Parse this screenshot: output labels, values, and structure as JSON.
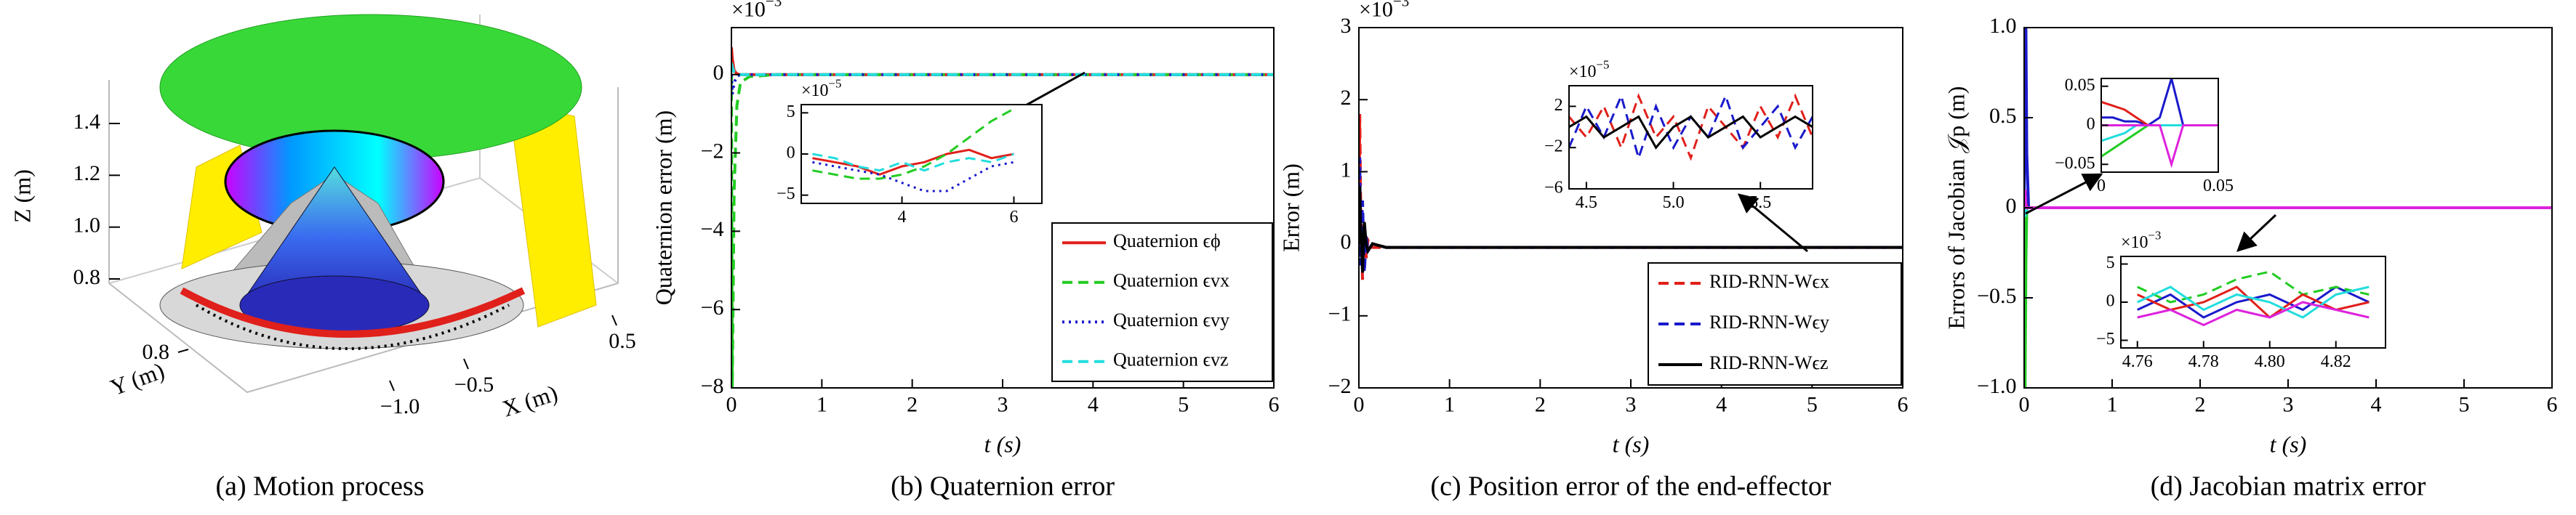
{
  "chart_data": [
    {
      "type": "surface3d",
      "caption": "(a) Motion process",
      "xlabel": "X (m)",
      "ylabel": "Y (m)",
      "zlabel": "Z (m)",
      "xlim": [
        -1.2,
        0.7
      ],
      "ylim": [
        0.5,
        1.1
      ],
      "zlim": [
        0.75,
        1.55
      ],
      "xticks": [
        {
          "value": -1,
          "label": "−1.0"
        },
        {
          "value": -0.5,
          "label": "−0.5"
        },
        0.5
      ],
      "yticks": [
        0.8
      ],
      "zticks": [
        0.8,
        {
          "value": 1,
          "label": "1.0"
        },
        1.2,
        1.4
      ]
    },
    {
      "type": "line",
      "caption": "(b) Quaternion error",
      "xlabel": "t (s)",
      "ylabel": "Quaternion error (m)",
      "y_multiplier": {
        "base": "×10",
        "exponent": "−3"
      },
      "xlim": [
        0,
        6
      ],
      "xticks": [
        0,
        1,
        2,
        3,
        4,
        5,
        6
      ],
      "ylim": [
        -8,
        1.2
      ],
      "yticks": [
        {
          "value": -8,
          "label": "−8"
        },
        {
          "value": -6,
          "label": "−6"
        },
        {
          "value": -4,
          "label": "−4"
        },
        {
          "value": -2,
          "label": "−2"
        },
        0
      ],
      "x": [
        0,
        0.01,
        0.03,
        0.06,
        0.1,
        0.2,
        0.5,
        1,
        2,
        3,
        4,
        5,
        6
      ],
      "series": [
        {
          "name": "Quaternion ϵϕ",
          "color": "#e0201b",
          "dash": "solid",
          "values": [
            0.7,
            0.4,
            0.1,
            0.02,
            0,
            0,
            0,
            0,
            0,
            0,
            0,
            0,
            0
          ]
        },
        {
          "name": "Quaternion ϵvx",
          "color": "#22cc22",
          "dash": "dashed",
          "values": [
            0,
            -8,
            -3,
            -0.8,
            -0.2,
            -0.05,
            0,
            0,
            0,
            0,
            0,
            0,
            0
          ]
        },
        {
          "name": "Quaternion ϵvy",
          "color": "#1a1acc",
          "dash": "dotted",
          "values": [
            0,
            -0.5,
            -0.2,
            -0.05,
            0,
            0,
            0,
            0,
            0,
            0,
            0,
            0,
            0
          ]
        },
        {
          "name": "Quaternion ϵvz",
          "color": "#22dddd",
          "dash": "dashed",
          "values": [
            0.3,
            0.2,
            0.05,
            0,
            0,
            0,
            0,
            0,
            0,
            0,
            0,
            0,
            0
          ]
        }
      ],
      "insets": [
        {
          "y_multiplier": {
            "base": "×10",
            "exponent": "−5"
          },
          "xlim": [
            2.2,
            6.5
          ],
          "xticks": [
            4,
            6
          ],
          "ylim": [
            -6,
            6
          ],
          "yticks": [
            {
              "value": -5,
              "label": "−5"
            },
            0,
            5
          ],
          "x": [
            2.4,
            2.8,
            3.2,
            3.6,
            4.0,
            4.4,
            4.8,
            5.2,
            5.6,
            6.0
          ],
          "series": [
            {
              "color": "#e0201b",
              "dash": "solid",
              "values": [
                -0.5,
                -1,
                -1.5,
                -2.5,
                -1.5,
                -1,
                0,
                0.5,
                -0.5,
                0
              ]
            },
            {
              "color": "#22cc22",
              "dash": "dashed",
              "values": [
                -2,
                -2.5,
                -3,
                -3,
                -2.5,
                -1.5,
                0,
                2,
                4,
                5.5
              ]
            },
            {
              "color": "#1a1acc",
              "dash": "dotted",
              "values": [
                -1,
                -1.5,
                -2,
                -2.5,
                -3.5,
                -4.5,
                -4.5,
                -3,
                -1.5,
                -1
              ]
            },
            {
              "color": "#22dddd",
              "dash": "dashed",
              "values": [
                0,
                -0.5,
                -1.5,
                -2,
                -1,
                -2,
                -1,
                -0.5,
                -1,
                0
              ]
            }
          ]
        }
      ]
    },
    {
      "type": "line",
      "caption": "(c) Position error of the end-effector",
      "xlabel": "t (s)",
      "ylabel": "Error (m)",
      "y_multiplier": {
        "base": "×10",
        "exponent": "−3"
      },
      "xlim": [
        0,
        6
      ],
      "xticks": [
        0,
        1,
        2,
        3,
        4,
        5,
        6
      ],
      "ylim": [
        -2,
        3
      ],
      "yticks": [
        {
          "value": -2,
          "label": "−2"
        },
        {
          "value": -1,
          "label": "−1"
        },
        0,
        1,
        2,
        3
      ],
      "x": [
        0,
        0.01,
        0.02,
        0.04,
        0.06,
        0.08,
        0.1,
        0.15,
        0.3,
        0.6,
        1,
        2,
        3,
        4,
        5,
        6
      ],
      "series": [
        {
          "name": "RID-RNN-Wϵx",
          "color": "#e0201b",
          "dash": "dashed",
          "values": [
            0,
            1.8,
            0.5,
            -0.5,
            0.2,
            -0.2,
            0.05,
            -0.05,
            -0.05,
            -0.05,
            -0.05,
            -0.05,
            -0.05,
            -0.05,
            -0.05,
            -0.05
          ]
        },
        {
          "name": "RID-RNN-Wϵy",
          "color": "#1a1acc",
          "dash": "dashed",
          "values": [
            0,
            1.2,
            -0.3,
            0.6,
            -0.4,
            0.1,
            -0.1,
            0,
            -0.05,
            -0.05,
            -0.05,
            -0.05,
            -0.05,
            -0.05,
            -0.05,
            -0.05
          ]
        },
        {
          "name": "RID-RNN-Wϵz",
          "color": "#000000",
          "dash": "solid",
          "values": [
            0,
            0.8,
            0.2,
            -0.4,
            0.3,
            0,
            -0.1,
            0,
            -0.05,
            -0.05,
            -0.05,
            -0.05,
            -0.05,
            -0.05,
            -0.05,
            -0.05
          ]
        }
      ],
      "insets": [
        {
          "y_multiplier": {
            "base": "×10",
            "exponent": "−5"
          },
          "xlim": [
            4.4,
            5.8
          ],
          "xticks": [
            4.5,
            {
              "value": 5,
              "label": "5.0"
            },
            5.5
          ],
          "ylim": [
            -6,
            4
          ],
          "yticks": [
            {
              "value": -6,
              "label": "−6"
            },
            {
              "value": -2,
              "label": "−2"
            },
            2
          ],
          "x": [
            4.4,
            4.5,
            4.6,
            4.7,
            4.8,
            4.9,
            5.0,
            5.1,
            5.2,
            5.3,
            5.4,
            5.5,
            5.6,
            5.7,
            5.8
          ],
          "series": [
            {
              "color": "#e0201b",
              "dash": "dashed",
              "values": [
                1,
                -1,
                2,
                -2,
                3,
                -1,
                1,
                -3,
                2,
                0,
                -2,
                2,
                -1,
                3,
                -1
              ]
            },
            {
              "color": "#1a1acc",
              "dash": "dashed",
              "values": [
                -2,
                2,
                -1,
                3,
                -3,
                2,
                -2,
                1,
                -1,
                3,
                -2,
                0,
                2,
                -2,
                1
              ]
            },
            {
              "color": "#000000",
              "dash": "solid",
              "values": [
                0,
                1,
                -1,
                0,
                1,
                -2,
                0,
                1,
                -1,
                0,
                1,
                -1,
                0,
                1,
                0
              ]
            }
          ]
        }
      ]
    },
    {
      "type": "line",
      "caption": "(d) Jacobian matrix error",
      "xlabel": "t (s)",
      "ylabel": "Errors of Jacobian 𝒥p (m)",
      "xlim": [
        0,
        6
      ],
      "xticks": [
        0,
        1,
        2,
        3,
        4,
        5,
        6
      ],
      "ylim": [
        -1,
        1
      ],
      "yticks": [
        {
          "value": -1,
          "label": "−1.0"
        },
        {
          "value": -0.5,
          "label": "−0.5"
        },
        0,
        0.5,
        {
          "value": 1,
          "label": "1.0"
        }
      ],
      "x": [
        0,
        0.01,
        0.02,
        0.03,
        0.05,
        0.1,
        1,
        2,
        3,
        4,
        5,
        6
      ],
      "series": [
        {
          "color": "#1a1acc",
          "dash": "solid",
          "values": [
            0,
            0.5,
            1,
            0.3,
            0,
            0,
            0,
            0,
            0,
            0,
            0,
            0
          ]
        },
        {
          "color": "#22cc22",
          "dash": "solid",
          "values": [
            0,
            -1,
            -0.3,
            0,
            0,
            0,
            0,
            0,
            0,
            0,
            0,
            0
          ]
        },
        {
          "color": "#e0201b",
          "dash": "solid",
          "values": [
            0,
            0.05,
            0.02,
            0,
            0,
            0,
            0,
            0,
            0,
            0,
            0,
            0
          ]
        },
        {
          "color": "#22dddd",
          "dash": "solid",
          "values": [
            0,
            -0.05,
            -0.02,
            0,
            0,
            0,
            0,
            0,
            0,
            0,
            0,
            0
          ]
        },
        {
          "color": "#dd22dd",
          "dash": "solid",
          "values": [
            0,
            0.1,
            0,
            0,
            0,
            0,
            0,
            0,
            0,
            0,
            0,
            0
          ]
        }
      ],
      "insets": [
        {
          "xlim": [
            0,
            0.05
          ],
          "xticks": [
            0,
            0.05
          ],
          "ylim": [
            -0.06,
            0.06
          ],
          "yticks": [
            {
              "value": -0.05,
              "label": "−0.05"
            },
            0,
            0.05
          ],
          "x": [
            0,
            0.005,
            0.01,
            0.015,
            0.02,
            0.025,
            0.03,
            0.035,
            0.04,
            0.045,
            0.05
          ],
          "series": [
            {
              "color": "#1a1acc",
              "dash": "solid",
              "values": [
                0.01,
                0.01,
                0.005,
                0.005,
                0,
                0.01,
                0.06,
                0,
                0,
                0,
                0
              ]
            },
            {
              "color": "#22cc22",
              "dash": "solid",
              "values": [
                -0.04,
                -0.03,
                -0.02,
                -0.01,
                0,
                0,
                0,
                0,
                0,
                0,
                0
              ]
            },
            {
              "color": "#e0201b",
              "dash": "solid",
              "values": [
                0.03,
                0.025,
                0.02,
                0.01,
                0,
                0,
                0,
                0,
                0,
                0,
                0
              ]
            },
            {
              "color": "#22dddd",
              "dash": "solid",
              "values": [
                -0.02,
                -0.015,
                -0.01,
                0,
                0,
                0,
                0,
                0,
                0,
                0,
                0
              ]
            },
            {
              "color": "#dd22dd",
              "dash": "solid",
              "values": [
                0,
                0,
                0,
                0,
                0,
                0,
                -0.05,
                0,
                0,
                0,
                0
              ]
            }
          ]
        },
        {
          "y_multiplier": {
            "base": "×10",
            "exponent": "−3"
          },
          "xlim": [
            4.755,
            4.835
          ],
          "xticks": [
            4.76,
            4.78,
            {
              "value": 4.8,
              "label": "4.80"
            },
            4.82
          ],
          "ylim": [
            -6,
            6
          ],
          "yticks": [
            {
              "value": -5,
              "label": "−5"
            },
            0,
            5
          ],
          "x": [
            4.76,
            4.77,
            4.78,
            4.79,
            4.8,
            4.81,
            4.82,
            4.83
          ],
          "series": [
            {
              "color": "#1a1acc",
              "dash": "solid",
              "values": [
                -1,
                1,
                -2,
                0,
                1,
                -1,
                2,
                0
              ]
            },
            {
              "color": "#22cc22",
              "dash": "dashed",
              "values": [
                2,
                0,
                1,
                3,
                4,
                1,
                2,
                1
              ]
            },
            {
              "color": "#e0201b",
              "dash": "solid",
              "values": [
                1,
                -1,
                0,
                2,
                -2,
                1,
                -1,
                0
              ]
            },
            {
              "color": "#22dddd",
              "dash": "solid",
              "values": [
                0,
                2,
                -1,
                1,
                0,
                -2,
                1,
                2
              ]
            },
            {
              "color": "#dd22dd",
              "dash": "solid",
              "values": [
                -2,
                -1,
                -3,
                -1,
                -2,
                0,
                -1,
                -2
              ]
            }
          ]
        }
      ]
    }
  ]
}
